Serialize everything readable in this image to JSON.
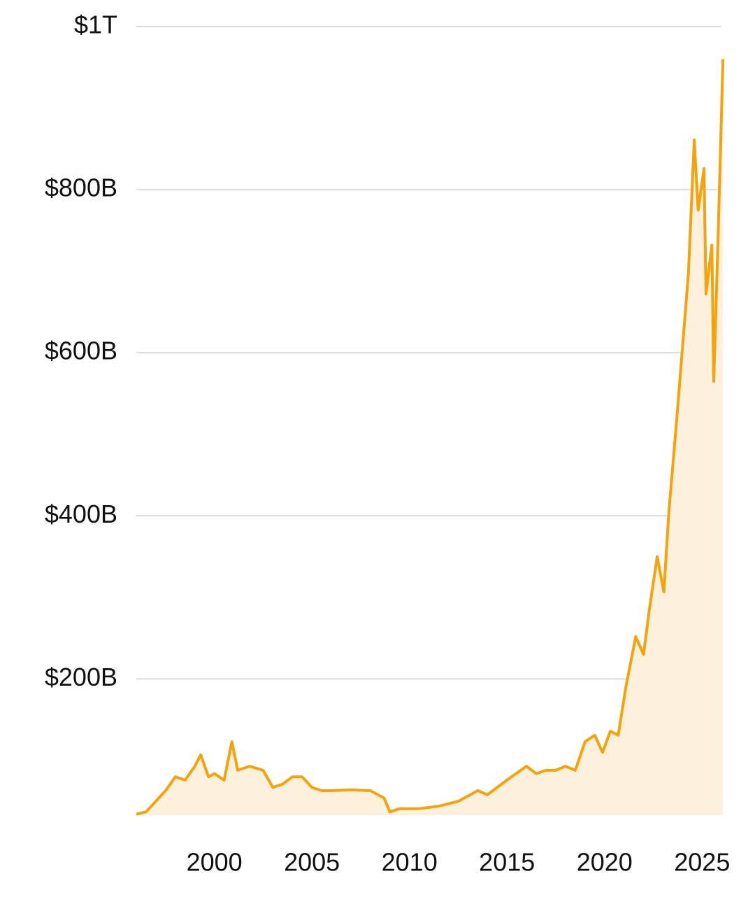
{
  "chart_data": {
    "type": "area",
    "x": [
      1996.0,
      1996.5,
      1997.0,
      1997.5,
      1998.0,
      1998.5,
      1999.0,
      1999.3,
      1999.7,
      2000.0,
      2000.5,
      2000.9,
      2001.2,
      2001.8,
      2002.5,
      2003.0,
      2003.5,
      2004.0,
      2004.5,
      2005.0,
      2005.5,
      2006.0,
      2007.0,
      2008.0,
      2008.7,
      2009.0,
      2009.5,
      2010.5,
      2011.5,
      2012.5,
      2013.5,
      2014.0,
      2015.0,
      2016.0,
      2016.5,
      2017.0,
      2017.5,
      2018.0,
      2018.5,
      2019.0,
      2019.5,
      2019.9,
      2020.3,
      2020.7,
      2021.1,
      2021.6,
      2022.0,
      2022.3,
      2022.7,
      2023.04,
      2023.3,
      2023.7,
      2023.9,
      2024.3,
      2024.6,
      2024.8,
      2025.1,
      2025.2,
      2025.5,
      2025.6,
      2025.8,
      2026.07
    ],
    "values": [
      34,
      37,
      50,
      63,
      80,
      76,
      93,
      107,
      80,
      84,
      76,
      123,
      88,
      93,
      88,
      67,
      71,
      80,
      80,
      67,
      63,
      63,
      64,
      63,
      54,
      37,
      41,
      41,
      44,
      50,
      63,
      58,
      76,
      93,
      84,
      88,
      88,
      93,
      88,
      123,
      131,
      110,
      136,
      131,
      191,
      252,
      230,
      286,
      350,
      307,
      406,
      518,
      578,
      698,
      861,
      775,
      826,
      672,
      732,
      565,
      724,
      960
    ],
    "color": "#f5a30d",
    "fill": "#fdf1de",
    "xlim": [
      1996.0,
      2026.1
    ],
    "xticks": [
      2000,
      2005,
      2010,
      2015,
      2020,
      2025
    ],
    "ylim": [
      33,
      1000
    ],
    "yticks": [
      {
        "value": 200,
        "label": "$200B"
      },
      {
        "value": 400,
        "label": "$400B"
      },
      {
        "value": 600,
        "label": "$600B"
      },
      {
        "value": 800,
        "label": "$800B"
      },
      {
        "value": 1000,
        "label": "$1T"
      }
    ],
    "grid": true
  }
}
